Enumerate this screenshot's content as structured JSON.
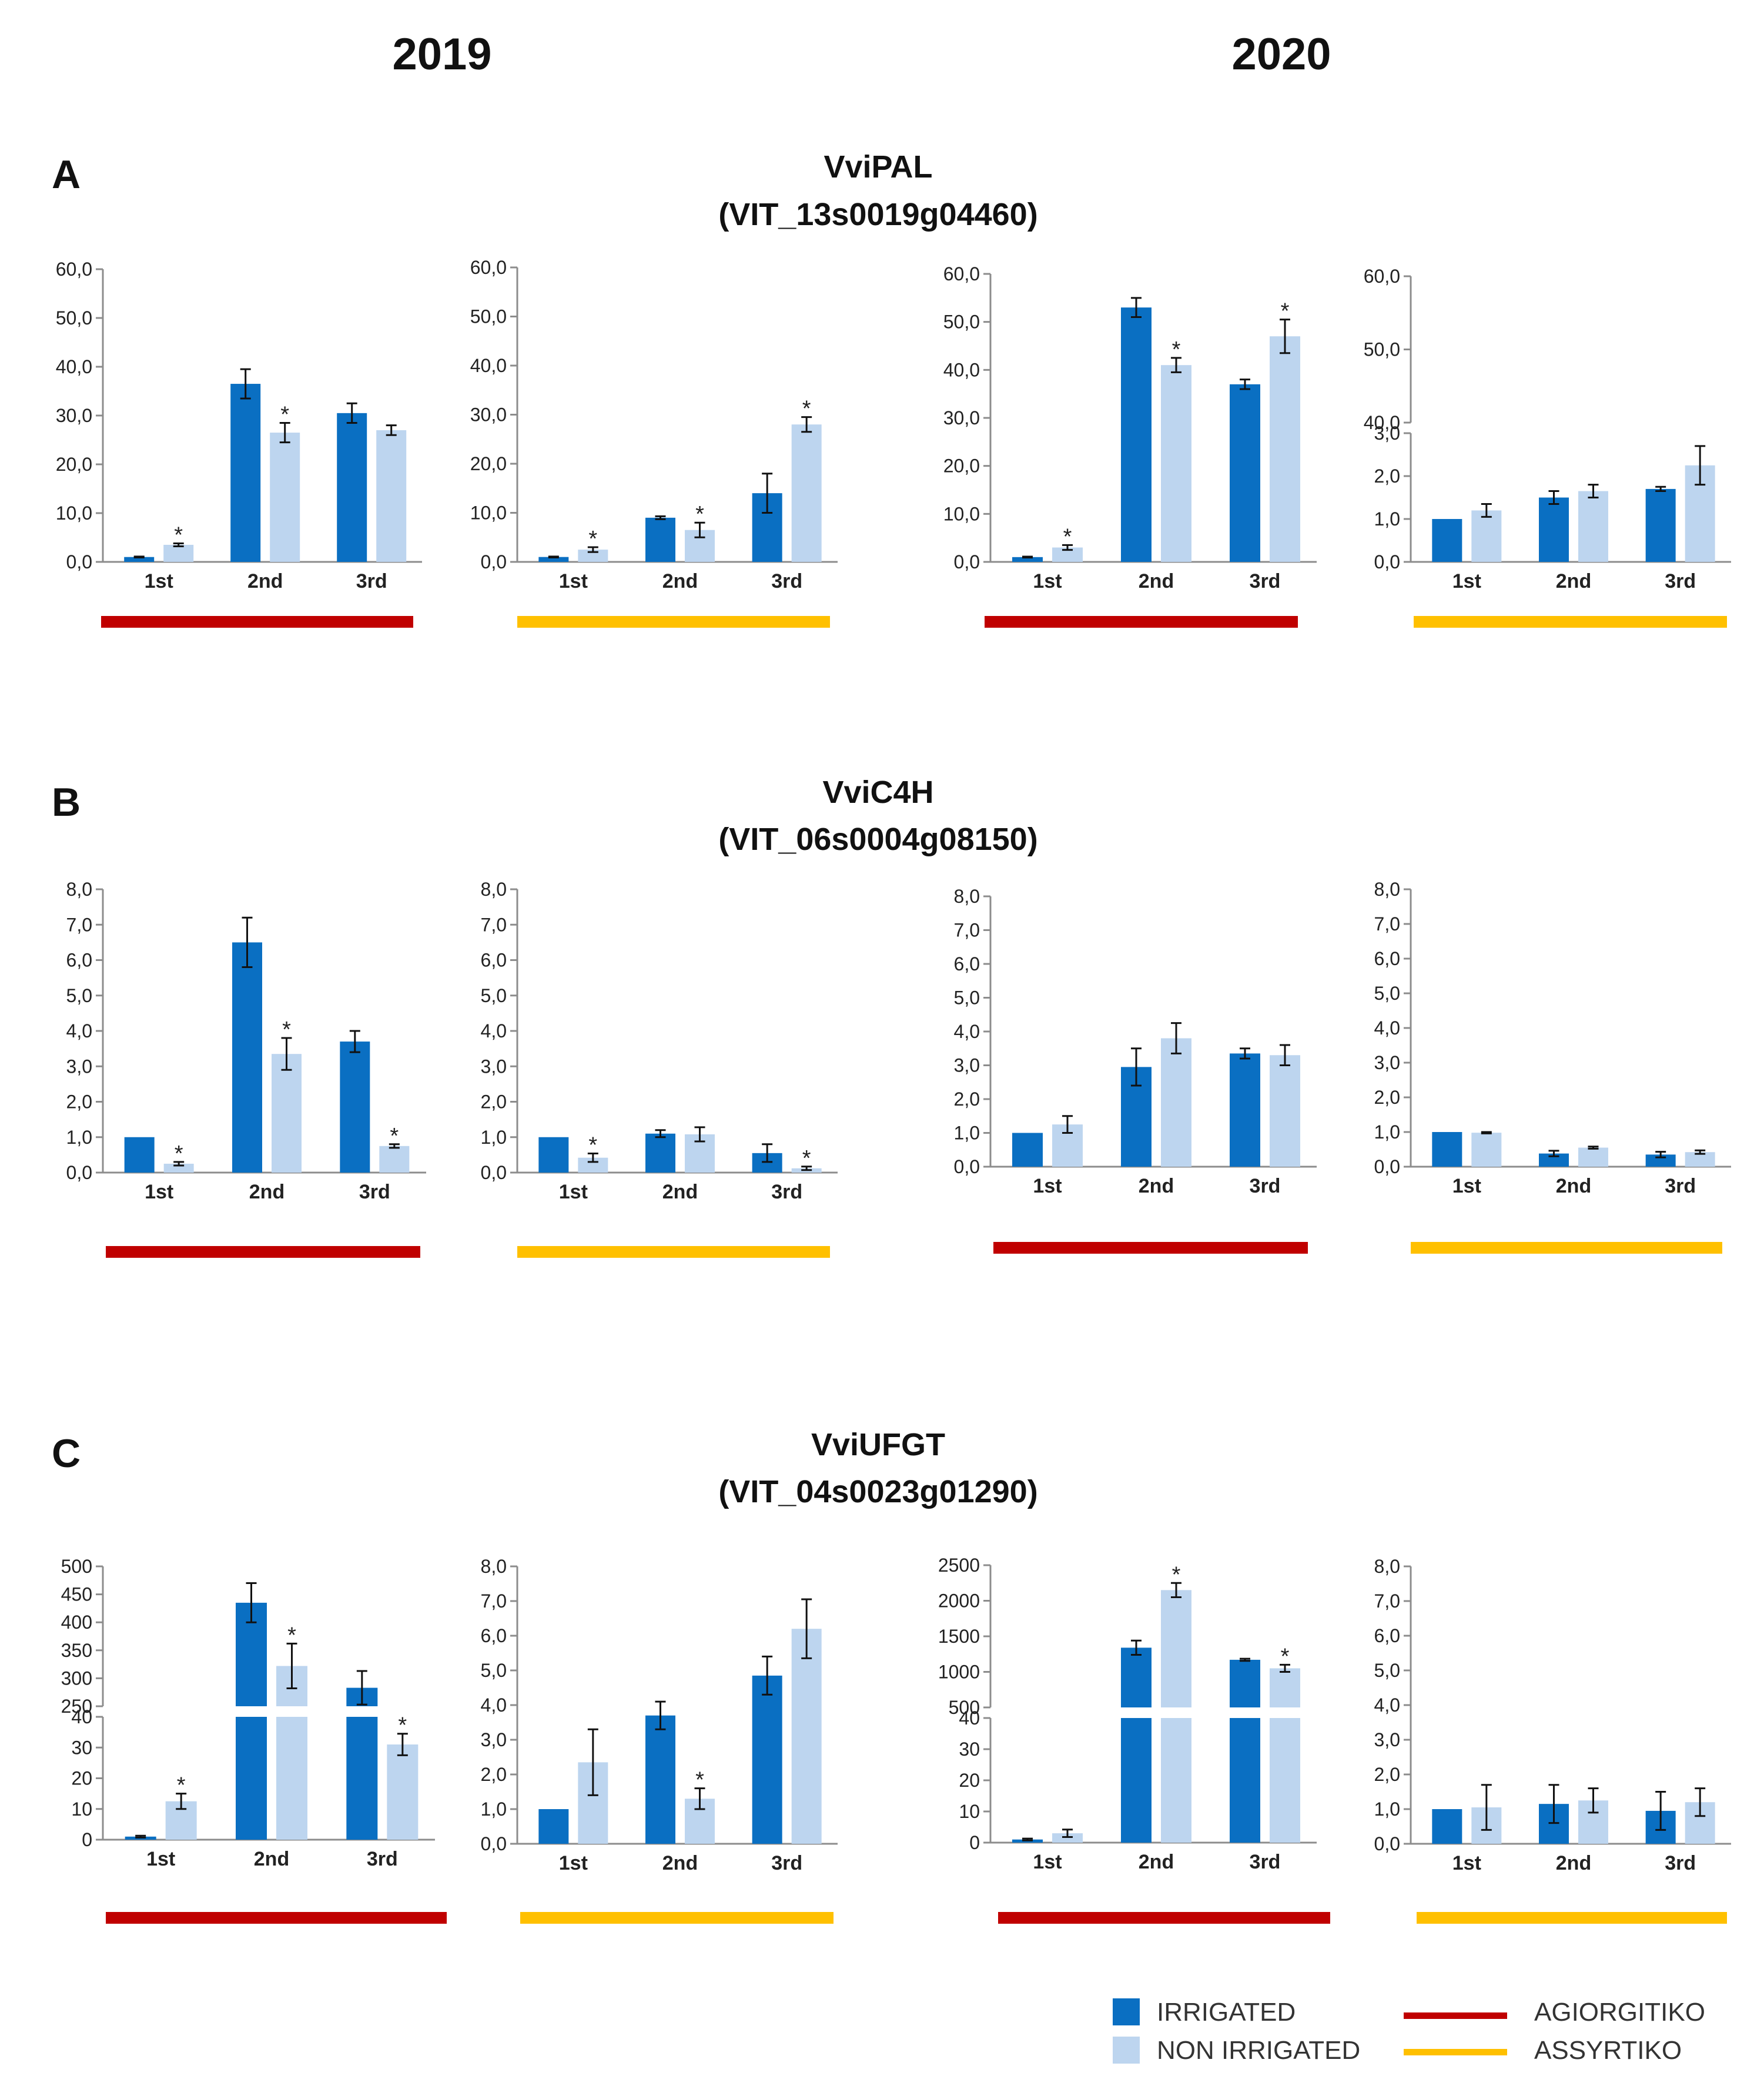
{
  "figure": {
    "years": [
      "2019",
      "2020"
    ],
    "legend": {
      "bars": [
        {
          "label": "IRRIGATED",
          "color": "#0a6fc2"
        },
        {
          "label": "NON IRRIGATED",
          "color": "#bdd5ef"
        }
      ],
      "lines": [
        {
          "label": "AGIORGITIKO",
          "color": "#c00000"
        },
        {
          "label": "ASSYRTIKO",
          "color": "#ffc000"
        }
      ]
    }
  },
  "chart_data": [
    {
      "panel": "A",
      "gene": "VviPAL",
      "gene_id": "(VIT_13s0019g04460)",
      "year": "2019",
      "variety": "AGIORGITIKO",
      "type": "bar",
      "categories": [
        "1st",
        "2nd",
        "3rd"
      ],
      "series": [
        {
          "name": "IRRIGATED",
          "values": [
            1.0,
            36.5,
            30.5
          ],
          "errors": [
            0.1,
            3.0,
            2.0
          ]
        },
        {
          "name": "NON IRRIGATED",
          "values": [
            3.5,
            26.5,
            27.0
          ],
          "errors": [
            0.3,
            2.0,
            1.0
          ]
        }
      ],
      "significant": [
        [
          false,
          false,
          false
        ],
        [
          true,
          true,
          false
        ]
      ],
      "axis": {
        "ticks": [
          "0,0",
          "10,0",
          "20,0",
          "30,0",
          "40,0",
          "50,0",
          "60,0"
        ],
        "ylim": [
          0,
          60
        ]
      }
    },
    {
      "panel": "A",
      "gene": "VviPAL",
      "year": "2019",
      "variety": "ASSYRTIKO",
      "type": "bar",
      "categories": [
        "1st",
        "2nd",
        "3rd"
      ],
      "series": [
        {
          "name": "IRRIGATED",
          "values": [
            1.0,
            9.0,
            14.0
          ],
          "errors": [
            0.1,
            0.3,
            4.0
          ]
        },
        {
          "name": "NON IRRIGATED",
          "values": [
            2.5,
            6.5,
            28.0
          ],
          "errors": [
            0.5,
            1.5,
            1.5
          ]
        }
      ],
      "significant": [
        [
          false,
          false,
          false
        ],
        [
          true,
          true,
          true
        ]
      ],
      "axis": {
        "ticks": [
          "0,0",
          "10,0",
          "20,0",
          "30,0",
          "40,0",
          "50,0",
          "60,0"
        ],
        "ylim": [
          0,
          60
        ]
      }
    },
    {
      "panel": "A",
      "gene": "VviPAL",
      "year": "2020",
      "variety": "AGIORGITIKO",
      "type": "bar",
      "categories": [
        "1st",
        "2nd",
        "3rd"
      ],
      "series": [
        {
          "name": "IRRIGATED",
          "values": [
            1.0,
            53.0,
            37.0
          ],
          "errors": [
            0.1,
            2.0,
            1.0
          ]
        },
        {
          "name": "NON IRRIGATED",
          "values": [
            3.0,
            41.0,
            47.0
          ],
          "errors": [
            0.5,
            1.5,
            3.5
          ]
        }
      ],
      "significant": [
        [
          false,
          false,
          false
        ],
        [
          true,
          true,
          true
        ]
      ],
      "axis": {
        "ticks": [
          "0,0",
          "10,0",
          "20,0",
          "30,0",
          "40,0",
          "50,0",
          "60,0"
        ],
        "ylim": [
          0,
          60
        ]
      }
    },
    {
      "panel": "A",
      "gene": "VviPAL",
      "year": "2020",
      "variety": "ASSYRTIKO",
      "type": "bar",
      "categories": [
        "1st",
        "2nd",
        "3rd"
      ],
      "series": [
        {
          "name": "IRRIGATED",
          "values": [
            1.0,
            1.5,
            1.7
          ],
          "errors": [
            0.0,
            0.15,
            0.05
          ]
        },
        {
          "name": "NON IRRIGATED",
          "values": [
            1.2,
            1.65,
            2.25
          ],
          "errors": [
            0.15,
            0.15,
            0.45
          ]
        }
      ],
      "significant": [
        [
          false,
          false,
          false
        ],
        [
          false,
          false,
          false
        ]
      ],
      "axis": {
        "broken": true,
        "lower_ticks": [
          "0,0",
          "1,0",
          "2,0",
          "3,0"
        ],
        "lower_ylim": [
          0,
          3
        ],
        "upper_ticks": [
          "40,0",
          "50,0",
          "60,0"
        ],
        "upper_ylim": [
          40,
          60
        ]
      }
    },
    {
      "panel": "B",
      "gene": "VviC4H",
      "gene_id": "(VIT_06s0004g08150)",
      "year": "2019",
      "variety": "AGIORGITIKO",
      "type": "bar",
      "categories": [
        "1st",
        "2nd",
        "3rd"
      ],
      "series": [
        {
          "name": "IRRIGATED",
          "values": [
            1.0,
            6.5,
            3.7
          ],
          "errors": [
            0.0,
            0.7,
            0.3
          ]
        },
        {
          "name": "NON IRRIGATED",
          "values": [
            0.25,
            3.35,
            0.75
          ],
          "errors": [
            0.05,
            0.45,
            0.05
          ]
        }
      ],
      "significant": [
        [
          false,
          false,
          false
        ],
        [
          true,
          true,
          true
        ]
      ],
      "axis": {
        "ticks": [
          "0,0",
          "1,0",
          "2,0",
          "3,0",
          "4,0",
          "5,0",
          "6,0",
          "7,0",
          "8,0"
        ],
        "ylim": [
          0,
          8
        ]
      }
    },
    {
      "panel": "B",
      "gene": "VviC4H",
      "year": "2019",
      "variety": "ASSYRTIKO",
      "type": "bar",
      "categories": [
        "1st",
        "2nd",
        "3rd"
      ],
      "series": [
        {
          "name": "IRRIGATED",
          "values": [
            1.0,
            1.1,
            0.55
          ],
          "errors": [
            0.0,
            0.1,
            0.25
          ]
        },
        {
          "name": "NON IRRIGATED",
          "values": [
            0.42,
            1.08,
            0.12
          ],
          "errors": [
            0.12,
            0.2,
            0.05
          ]
        }
      ],
      "significant": [
        [
          false,
          false,
          false
        ],
        [
          true,
          false,
          true
        ]
      ],
      "axis": {
        "ticks": [
          "0,0",
          "1,0",
          "2,0",
          "3,0",
          "4,0",
          "5,0",
          "6,0",
          "7,0",
          "8,0"
        ],
        "ylim": [
          0,
          8
        ]
      }
    },
    {
      "panel": "B",
      "gene": "VviC4H",
      "year": "2020",
      "variety": "AGIORGITIKO",
      "type": "bar",
      "categories": [
        "1st",
        "2nd",
        "3rd"
      ],
      "series": [
        {
          "name": "IRRIGATED",
          "values": [
            1.0,
            2.95,
            3.35
          ],
          "errors": [
            0.0,
            0.55,
            0.15
          ]
        },
        {
          "name": "NON IRRIGATED",
          "values": [
            1.25,
            3.8,
            3.3
          ],
          "errors": [
            0.25,
            0.45,
            0.3
          ]
        }
      ],
      "significant": [
        [
          false,
          false,
          false
        ],
        [
          false,
          false,
          false
        ]
      ],
      "axis": {
        "ticks": [
          "0,0",
          "1,0",
          "2,0",
          "3,0",
          "4,0",
          "5,0",
          "6,0",
          "7,0",
          "8,0"
        ],
        "ylim": [
          0,
          8
        ]
      }
    },
    {
      "panel": "B",
      "gene": "VviC4H",
      "year": "2020",
      "variety": "ASSYRTIKO",
      "type": "bar",
      "categories": [
        "1st",
        "2nd",
        "3rd"
      ],
      "series": [
        {
          "name": "IRRIGATED",
          "values": [
            1.0,
            0.38,
            0.35
          ],
          "errors": [
            0.0,
            0.08,
            0.08
          ]
        },
        {
          "name": "NON IRRIGATED",
          "values": [
            0.98,
            0.55,
            0.42
          ],
          "errors": [
            0.02,
            0.03,
            0.05
          ]
        }
      ],
      "significant": [
        [
          false,
          false,
          false
        ],
        [
          false,
          false,
          false
        ]
      ],
      "axis": {
        "ticks": [
          "0,0",
          "1,0",
          "2,0",
          "3,0",
          "4,0",
          "5,0",
          "6,0",
          "7,0",
          "8,0"
        ],
        "ylim": [
          0,
          8
        ]
      }
    },
    {
      "panel": "C",
      "gene": "VviUFGT",
      "gene_id": "(VIT_04s0023g01290)",
      "year": "2019",
      "variety": "AGIORGITIKO",
      "type": "bar",
      "categories": [
        "1st",
        "2nd",
        "3rd"
      ],
      "series": [
        {
          "name": "IRRIGATED",
          "values": [
            1,
            435,
            283
          ],
          "errors": [
            0.3,
            35,
            30
          ]
        },
        {
          "name": "NON IRRIGATED",
          "values": [
            12.5,
            322,
            31
          ],
          "errors": [
            2.5,
            40,
            3.5
          ]
        }
      ],
      "significant": [
        [
          false,
          false,
          false
        ],
        [
          true,
          true,
          true
        ]
      ],
      "axis": {
        "broken": true,
        "lower_ticks": [
          "0",
          "10",
          "20",
          "30",
          "40"
        ],
        "lower_ylim": [
          0,
          40
        ],
        "upper_ticks": [
          "250",
          "300",
          "350",
          "400",
          "450",
          "500"
        ],
        "upper_ylim": [
          250,
          500
        ]
      }
    },
    {
      "panel": "C",
      "gene": "VviUFGT",
      "year": "2019",
      "variety": "ASSYRTIKO",
      "type": "bar",
      "categories": [
        "1st",
        "2nd",
        "3rd"
      ],
      "series": [
        {
          "name": "IRRIGATED",
          "values": [
            1.0,
            3.7,
            4.85
          ],
          "errors": [
            0.0,
            0.4,
            0.55
          ]
        },
        {
          "name": "NON IRRIGATED",
          "values": [
            2.35,
            1.3,
            6.2
          ],
          "errors": [
            0.95,
            0.3,
            0.85
          ]
        }
      ],
      "significant": [
        [
          false,
          false,
          false
        ],
        [
          false,
          true,
          false
        ]
      ],
      "axis": {
        "ticks": [
          "0,0",
          "1,0",
          "2,0",
          "3,0",
          "4,0",
          "5,0",
          "6,0",
          "7,0",
          "8,0"
        ],
        "ylim": [
          0,
          8
        ]
      }
    },
    {
      "panel": "C",
      "gene": "VviUFGT",
      "year": "2020",
      "variety": "AGIORGITIKO",
      "type": "bar",
      "categories": [
        "1st",
        "2nd",
        "3rd"
      ],
      "series": [
        {
          "name": "IRRIGATED",
          "values": [
            1,
            1340,
            1170
          ],
          "errors": [
            0.3,
            100,
            15
          ]
        },
        {
          "name": "NON IRRIGATED",
          "values": [
            3,
            2150,
            1050
          ],
          "errors": [
            1.2,
            100,
            50
          ]
        }
      ],
      "significant": [
        [
          false,
          false,
          false
        ],
        [
          false,
          true,
          true
        ]
      ],
      "axis": {
        "broken": true,
        "lower_ticks": [
          "0",
          "10",
          "20",
          "30",
          "40"
        ],
        "lower_ylim": [
          0,
          40
        ],
        "upper_ticks": [
          "500",
          "1000",
          "1500",
          "2000",
          "2500"
        ],
        "upper_ylim": [
          500,
          2500
        ]
      }
    },
    {
      "panel": "C",
      "gene": "VviUFGT",
      "year": "2020",
      "variety": "ASSYRTIKO",
      "type": "bar",
      "categories": [
        "1st",
        "2nd",
        "3rd"
      ],
      "series": [
        {
          "name": "IRRIGATED",
          "values": [
            1.0,
            1.15,
            0.95
          ],
          "errors": [
            0.0,
            0.55,
            0.55
          ]
        },
        {
          "name": "NON IRRIGATED",
          "values": [
            1.05,
            1.25,
            1.2
          ],
          "errors": [
            0.65,
            0.35,
            0.4
          ]
        }
      ],
      "significant": [
        [
          false,
          false,
          false
        ],
        [
          false,
          false,
          false
        ]
      ],
      "axis": {
        "ticks": [
          "0,0",
          "1,0",
          "2,0",
          "3,0",
          "4,0",
          "5,0",
          "6,0",
          "7,0",
          "8,0"
        ],
        "ylim": [
          0,
          8
        ]
      }
    }
  ]
}
